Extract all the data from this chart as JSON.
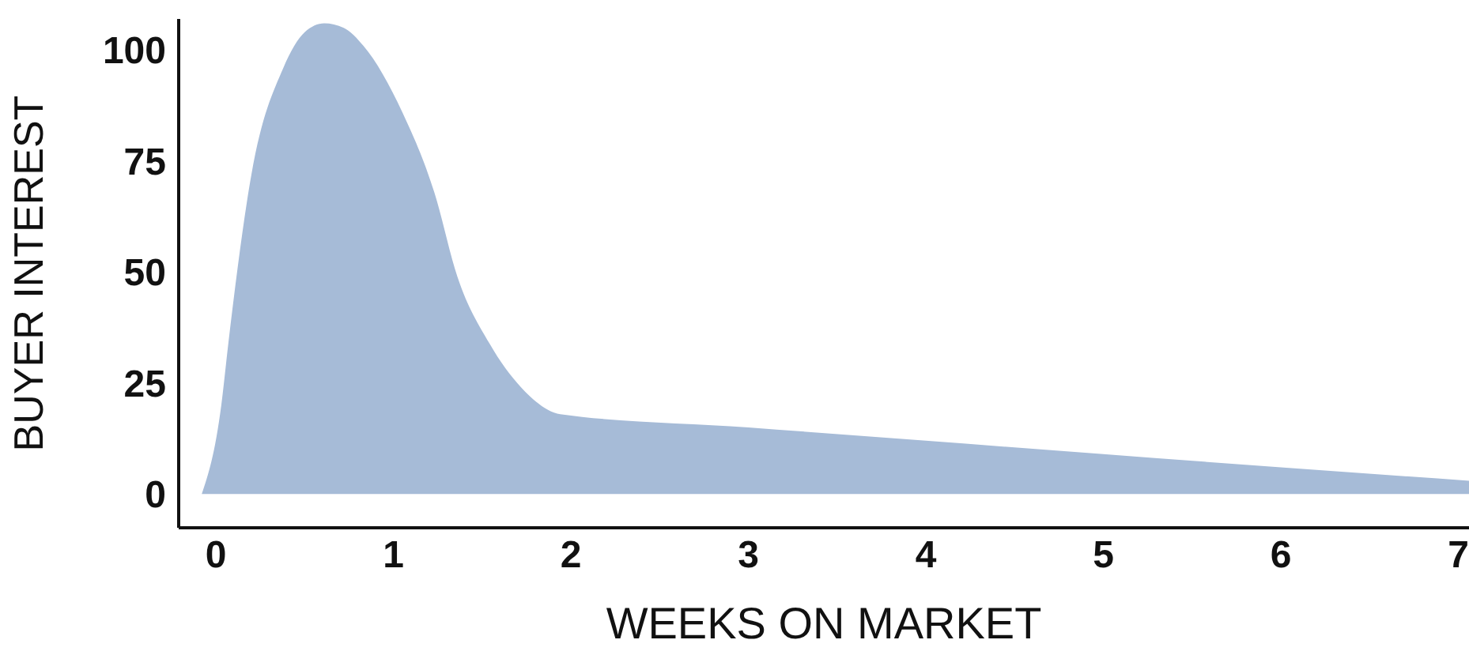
{
  "chart_data": {
    "type": "area",
    "xlabel": "WEEKS ON MARKET",
    "ylabel": "BUYER INTEREST",
    "x": [
      -0.08,
      0.03,
      0.07,
      0.2,
      0.38,
      0.5,
      0.61,
      0.72,
      0.83,
      1.05,
      1.23,
      1.36,
      1.54,
      1.72,
      1.94,
      3,
      4,
      5,
      6,
      7.06
    ],
    "series": [
      {
        "color": "#a6bbd7",
        "values": [
          0,
          20,
          34,
          72,
          96,
          104,
          106,
          105,
          101,
          86,
          68,
          49,
          34,
          24,
          18,
          15,
          12,
          9,
          6,
          3
        ]
      }
    ],
    "xlim": [
      -0.21,
      7.06
    ],
    "xticks": [
      0,
      1,
      2,
      3,
      4,
      5,
      6,
      7
    ],
    "ylim": [
      -7.6,
      107
    ],
    "yticks": [
      0,
      25,
      50,
      75,
      100
    ],
    "grid": false,
    "legend": false
  }
}
